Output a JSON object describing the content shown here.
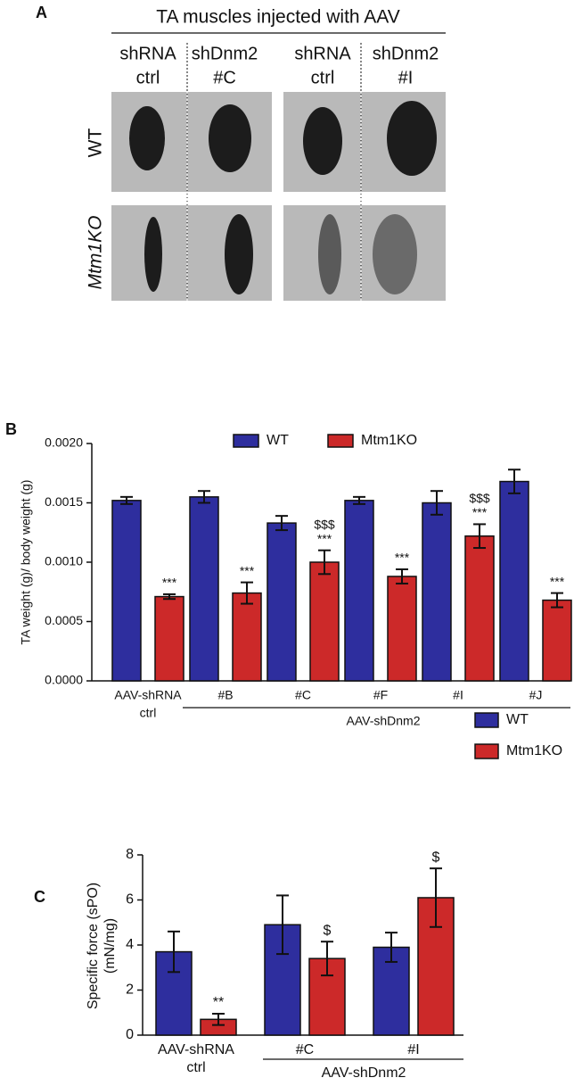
{
  "panel_labels": [
    "A",
    "B",
    "C"
  ],
  "panel_a": {
    "title": "TA muscles injected with AAV",
    "columns": [
      [
        "shRNA",
        "ctrl"
      ],
      [
        "shDnm2",
        "#C"
      ],
      [
        "shRNA",
        "ctrl"
      ],
      [
        "shDnm2",
        "#I"
      ]
    ],
    "rows": [
      "WT",
      "Mtm1KO"
    ]
  },
  "chart_data": [
    {
      "type": "bar",
      "ylabel": "TA weight (g)/ body weight (g)",
      "categories": [
        [
          "AAV-shRNA",
          "ctrl"
        ],
        "#B",
        "#C",
        "#F",
        "#I",
        "#J"
      ],
      "group_label": "AAV-shDnm2",
      "ylim": [
        0,
        0.002
      ],
      "yticks": [
        {
          "value": 0,
          "label": "0.0000"
        },
        {
          "value": 0.0005,
          "label": "0.0005"
        },
        {
          "value": 0.001,
          "label": "0.0010"
        },
        {
          "value": 0.0015,
          "label": "0.0015"
        },
        {
          "value": 0.002,
          "label": "0.0020"
        }
      ],
      "legend": "top",
      "series": [
        {
          "name": "WT",
          "color": "#2e2e9e",
          "values": [
            0.00152,
            0.00155,
            0.00133,
            0.00152,
            0.0015,
            0.00168
          ],
          "errors": [
            3e-05,
            5e-05,
            6e-05,
            3e-05,
            0.0001,
            0.0001
          ]
        },
        {
          "name": "Mtm1KO",
          "color": "#cc2929",
          "values": [
            0.00071,
            0.00074,
            0.001,
            0.00088,
            0.00122,
            0.00068
          ],
          "errors": [
            2e-05,
            9e-05,
            0.0001,
            6e-05,
            0.0001,
            6e-05
          ],
          "annotations": [
            [
              "***"
            ],
            [
              "***"
            ],
            [
              "$$$",
              "***"
            ],
            [
              "***"
            ],
            [
              "$$$",
              "***"
            ],
            [
              "***"
            ]
          ]
        }
      ]
    },
    {
      "type": "bar",
      "ylabel": [
        "Specific force (sPO)",
        "(mN/mg)"
      ],
      "categories": [
        [
          "AAV-shRNA",
          "ctrl"
        ],
        "#C",
        "#I"
      ],
      "group_label": "AAV-shDnm2",
      "ylim": [
        0,
        8
      ],
      "yticks": [
        0,
        2,
        4,
        6,
        8
      ],
      "legend": "right",
      "series": [
        {
          "name": "WT",
          "color": "#2e2e9e",
          "values": [
            3.7,
            4.9,
            3.9
          ],
          "errors": [
            0.9,
            1.3,
            0.65
          ]
        },
        {
          "name": "Mtm1KO",
          "color": "#cc2929",
          "values": [
            0.7,
            3.4,
            6.1
          ],
          "errors": [
            0.25,
            0.75,
            1.3
          ],
          "annotations": [
            [
              "**"
            ],
            [
              "$"
            ],
            [
              "$"
            ]
          ]
        }
      ]
    }
  ]
}
